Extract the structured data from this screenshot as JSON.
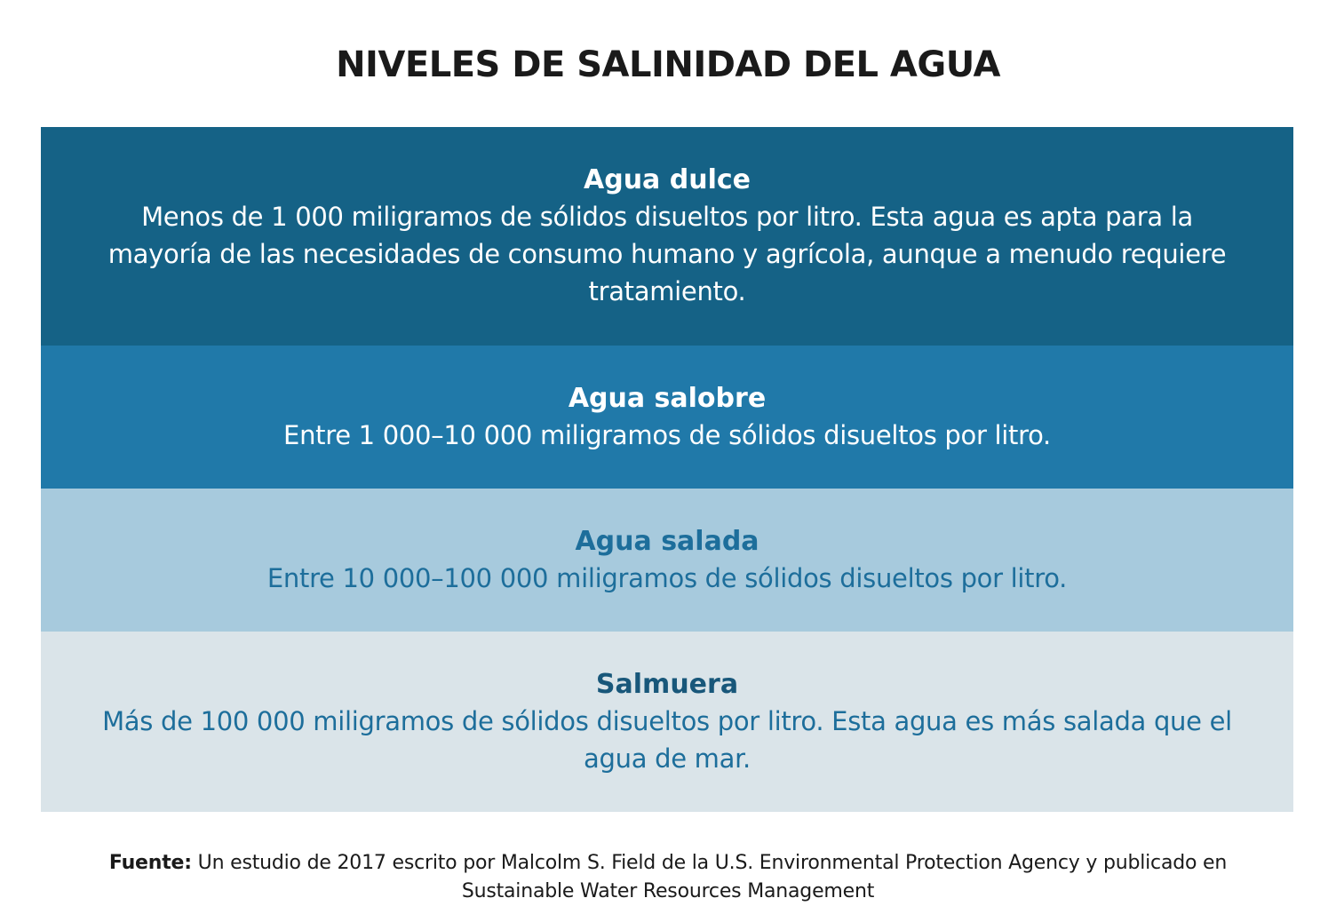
{
  "title": "NIVELES DE SALINIDAD DEL AGUA",
  "levels": [
    {
      "heading": "Agua dulce",
      "description": "Menos de 1 000 miligramos de sólidos disueltos por litro. Esta agua es apta para la mayoría de las necesidades de consumo humano y agrícola, aunque a menudo requiere tratamiento.",
      "color": "#156286"
    },
    {
      "heading": "Agua salobre",
      "description": "Entre 1 000–10 000 miligramos de sólidos disueltos por litro.",
      "color": "#2079a9"
    },
    {
      "heading": "Agua salada",
      "description": "Entre 10 000–100 000 miligramos de sólidos disueltos por litro.",
      "color": "#a7cadd"
    },
    {
      "heading": "Salmuera",
      "description": "Más de 100 000 miligramos de sólidos disueltos por litro. Esta agua es más salada que el agua de mar.",
      "color": "#dae4e9"
    }
  ],
  "source": {
    "label": "Fuente:",
    "text": "Un estudio de 2017 escrito por Malcolm S. Field de la U.S. Environmental Protection Agency y publicado en Sustainable Water Resources Management"
  }
}
